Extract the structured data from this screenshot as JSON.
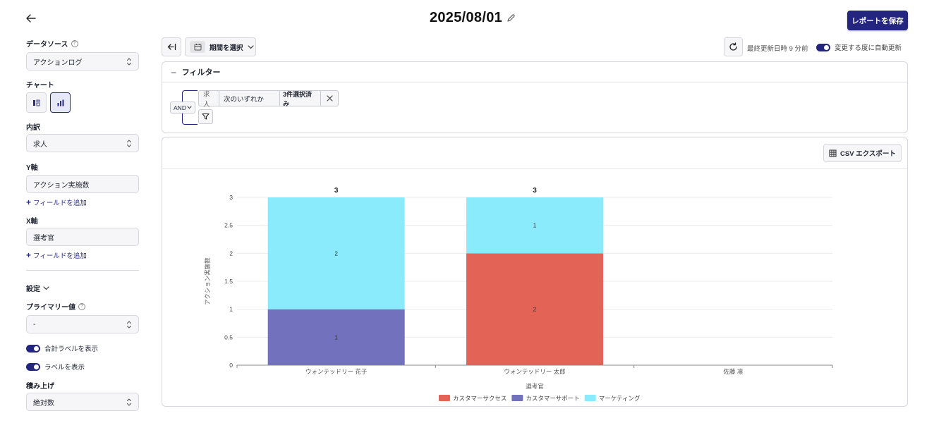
{
  "header": {
    "title": "2025/08/01",
    "save_label": "レポートを保存"
  },
  "sidebar": {
    "datasource_label": "データソース",
    "datasource_value": "アクションログ",
    "chart_label": "チャート",
    "breakdown_label": "内訳",
    "breakdown_value": "求人",
    "y_axis_label": "Y軸",
    "y_axis_value": "アクション実施数",
    "add_field_label": "フィールドを追加",
    "x_axis_label": "X軸",
    "x_axis_value": "選考官",
    "settings_label": "設定",
    "primary_label": "プライマリー値",
    "primary_value": "-",
    "show_total_label": "合計ラベルを表示",
    "show_labels_label": "ラベルを表示",
    "stack_label": "積み上げ",
    "stack_value": "絶対数"
  },
  "toolbar": {
    "period_label": "期間を選択",
    "last_updated": "最終更新日時 9 分前",
    "auto_update_label": "変更する度に自動更新"
  },
  "filter": {
    "title": "フィルター",
    "logic": "AND",
    "conditions": [
      {
        "field": "求人",
        "operator": "次のいずれか",
        "value": "3件選択済み"
      }
    ]
  },
  "chart_panel": {
    "csv_label": "CSV エクスポート"
  },
  "chart_data": {
    "type": "bar",
    "stacked": true,
    "categories": [
      "ウォンテッドリー 花子",
      "ウォンテッドリー 太郎",
      "佐藤 凛"
    ],
    "series": [
      {
        "name": "カスタマーサクセス",
        "values": [
          0,
          2,
          0
        ],
        "color": "#e36456"
      },
      {
        "name": "カスタマーサポート",
        "values": [
          1,
          0,
          0
        ],
        "color": "#7271bd"
      },
      {
        "name": "マーケティング",
        "values": [
          2,
          1,
          0
        ],
        "color": "#89ebfb"
      }
    ],
    "totals": [
      3,
      3,
      null
    ],
    "xlabel": "選考官",
    "ylabel": "アクション実施数",
    "ylim": [
      0,
      3
    ],
    "yticks": [
      "0",
      "0.5",
      "1",
      "1.5",
      "2",
      "2.5",
      "3"
    ],
    "grid": true,
    "legend": "bottom"
  }
}
